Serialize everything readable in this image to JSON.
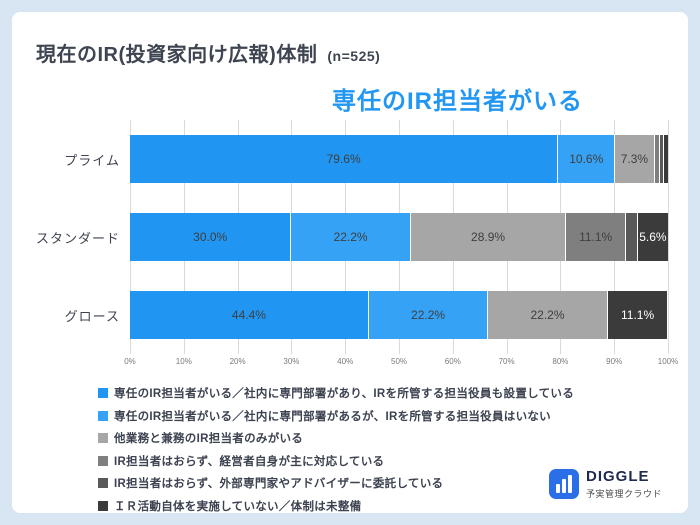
{
  "page": {
    "title": "現在のIR(投資家向け広報)体制",
    "title_suffix": "(n=525)",
    "annotation": "専任のIR担当者がいる",
    "annotation_color": "#2196F3"
  },
  "logo": {
    "name": "DIGGLE",
    "subtitle": "予実管理クラウド"
  },
  "chart_data": {
    "type": "bar",
    "orientation": "horizontal",
    "stacked": true,
    "unit": "%",
    "xlim": [
      0,
      100
    ],
    "x_ticks": [
      "0%",
      "10%",
      "20%",
      "30%",
      "40%",
      "50%",
      "60%",
      "70%",
      "80%",
      "90%",
      "100%"
    ],
    "grid": true,
    "legend_position": "bottom",
    "label_min_value": 5,
    "label_color_dark": "#3F3F3F",
    "label_color_light": "#FFFFFF",
    "categories": [
      "プライム",
      "スタンダード",
      "グロース"
    ],
    "series": [
      {
        "name": "専任のIR担当者がいる／社内に専門部署があり、IRを所管する担当役員も設置している",
        "color": "#2095F1",
        "values": [
          79.6,
          30.0,
          44.4
        ]
      },
      {
        "name": "専任のIR担当者がいる／社内に専門部署があるが、IRを所管する担当役員はいない",
        "color": "#35A2F5",
        "values": [
          10.6,
          22.2,
          22.2
        ]
      },
      {
        "name": "他業務と兼務のIR担当者のみがいる",
        "color": "#A6A6A6",
        "values": [
          7.3,
          28.9,
          22.2
        ]
      },
      {
        "name": "IR担当者はおらず、経営者自身が主に対応している",
        "color": "#7F7F7F",
        "values": [
          1.0,
          11.1,
          0
        ]
      },
      {
        "name": "IR担当者はおらず、外部専門家やアドバイザーに委託している",
        "color": "#595959",
        "values": [
          0.8,
          2.2,
          0
        ]
      },
      {
        "name": "ＩＲ活動自体を実施していない／体制は未整備",
        "color": "#3B3B3B",
        "values": [
          0.7,
          5.6,
          11.1
        ]
      }
    ]
  }
}
